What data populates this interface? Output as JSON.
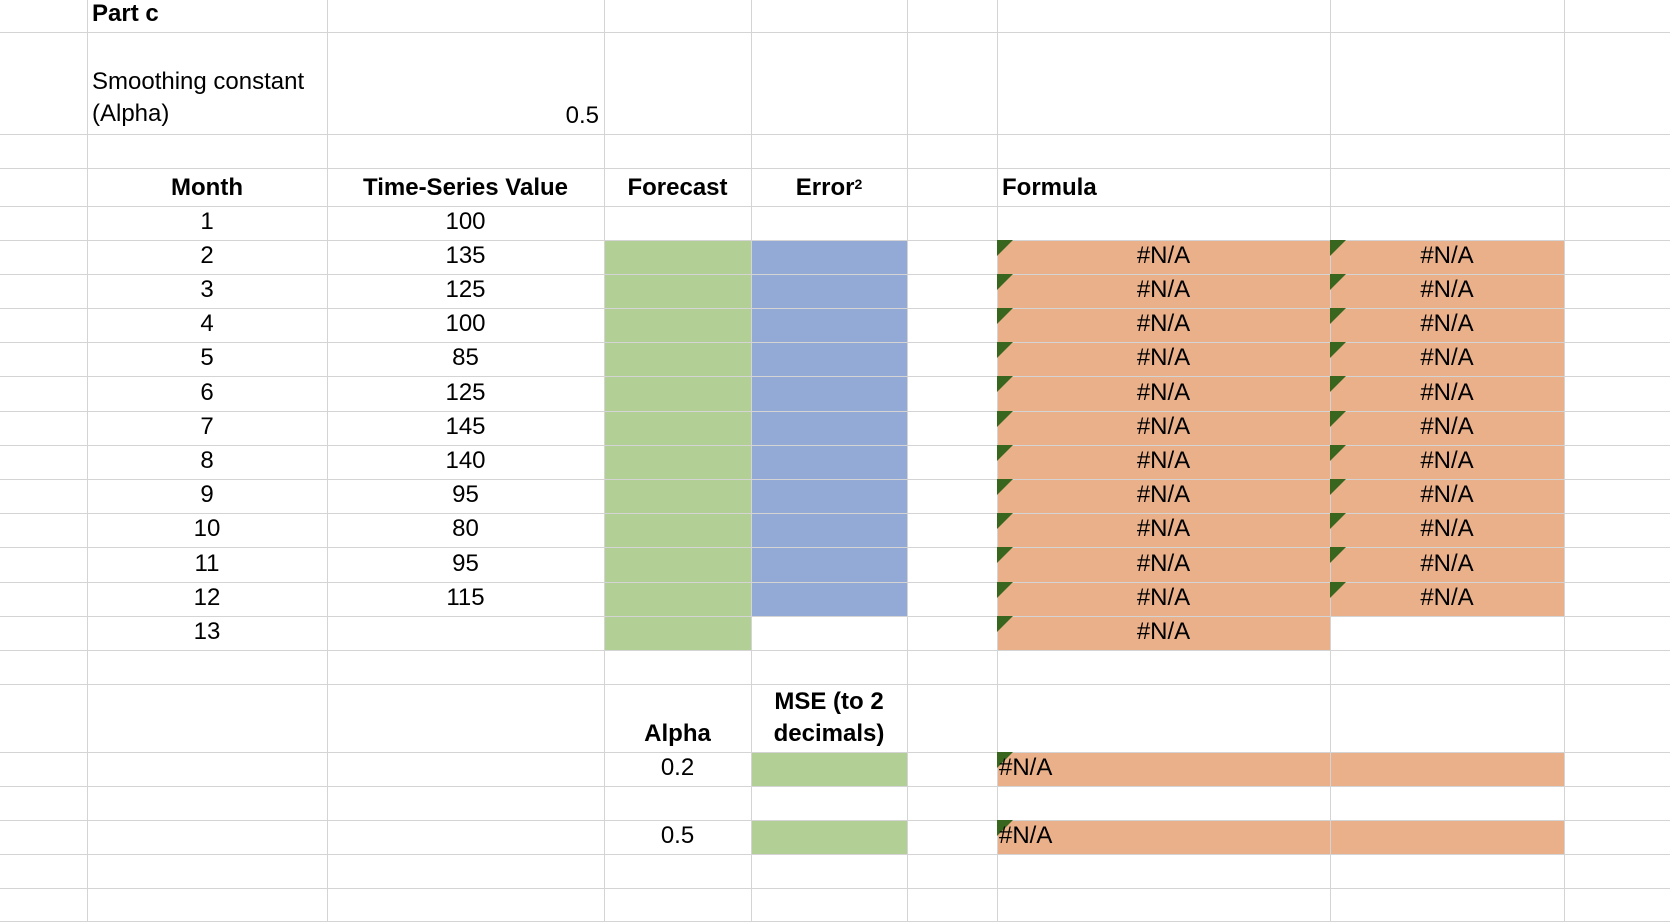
{
  "sheet": {
    "title": "Part c",
    "smoothing_label": "Smoothing constant (Alpha)",
    "smoothing_label_line1": "Smoothing constant",
    "smoothing_label_line2": "(Alpha)",
    "alpha_value": "0.5"
  },
  "table": {
    "headers": {
      "month": "Month",
      "value": "Time-Series Value",
      "forecast": "Forecast",
      "error": "Error",
      "error_sup": "2",
      "formula": "Formula"
    },
    "rows": [
      {
        "month": "1",
        "value": "100"
      },
      {
        "month": "2",
        "value": "135"
      },
      {
        "month": "3",
        "value": "125"
      },
      {
        "month": "4",
        "value": "100"
      },
      {
        "month": "5",
        "value": "85"
      },
      {
        "month": "6",
        "value": "125"
      },
      {
        "month": "7",
        "value": "145"
      },
      {
        "month": "8",
        "value": "140"
      },
      {
        "month": "9",
        "value": "95"
      },
      {
        "month": "10",
        "value": "80"
      },
      {
        "month": "11",
        "value": "95"
      },
      {
        "month": "12",
        "value": "115"
      },
      {
        "month": "13",
        "value": ""
      }
    ],
    "error_text": "#N/A"
  },
  "mse": {
    "alpha_header": "Alpha",
    "mse_header_line1": "MSE (to 2",
    "mse_header_line2": "decimals)",
    "rows": [
      {
        "alpha": "0.2",
        "formula": "#N/A"
      },
      {
        "alpha": "0.5",
        "formula": "#N/A"
      }
    ]
  },
  "colors": {
    "forecast_fill": "#b2cf96",
    "error_fill": "#93aad7",
    "formula_fill": "#e9b08a",
    "error_triangle": "#38661f",
    "gridline": "#d4d4d4"
  }
}
